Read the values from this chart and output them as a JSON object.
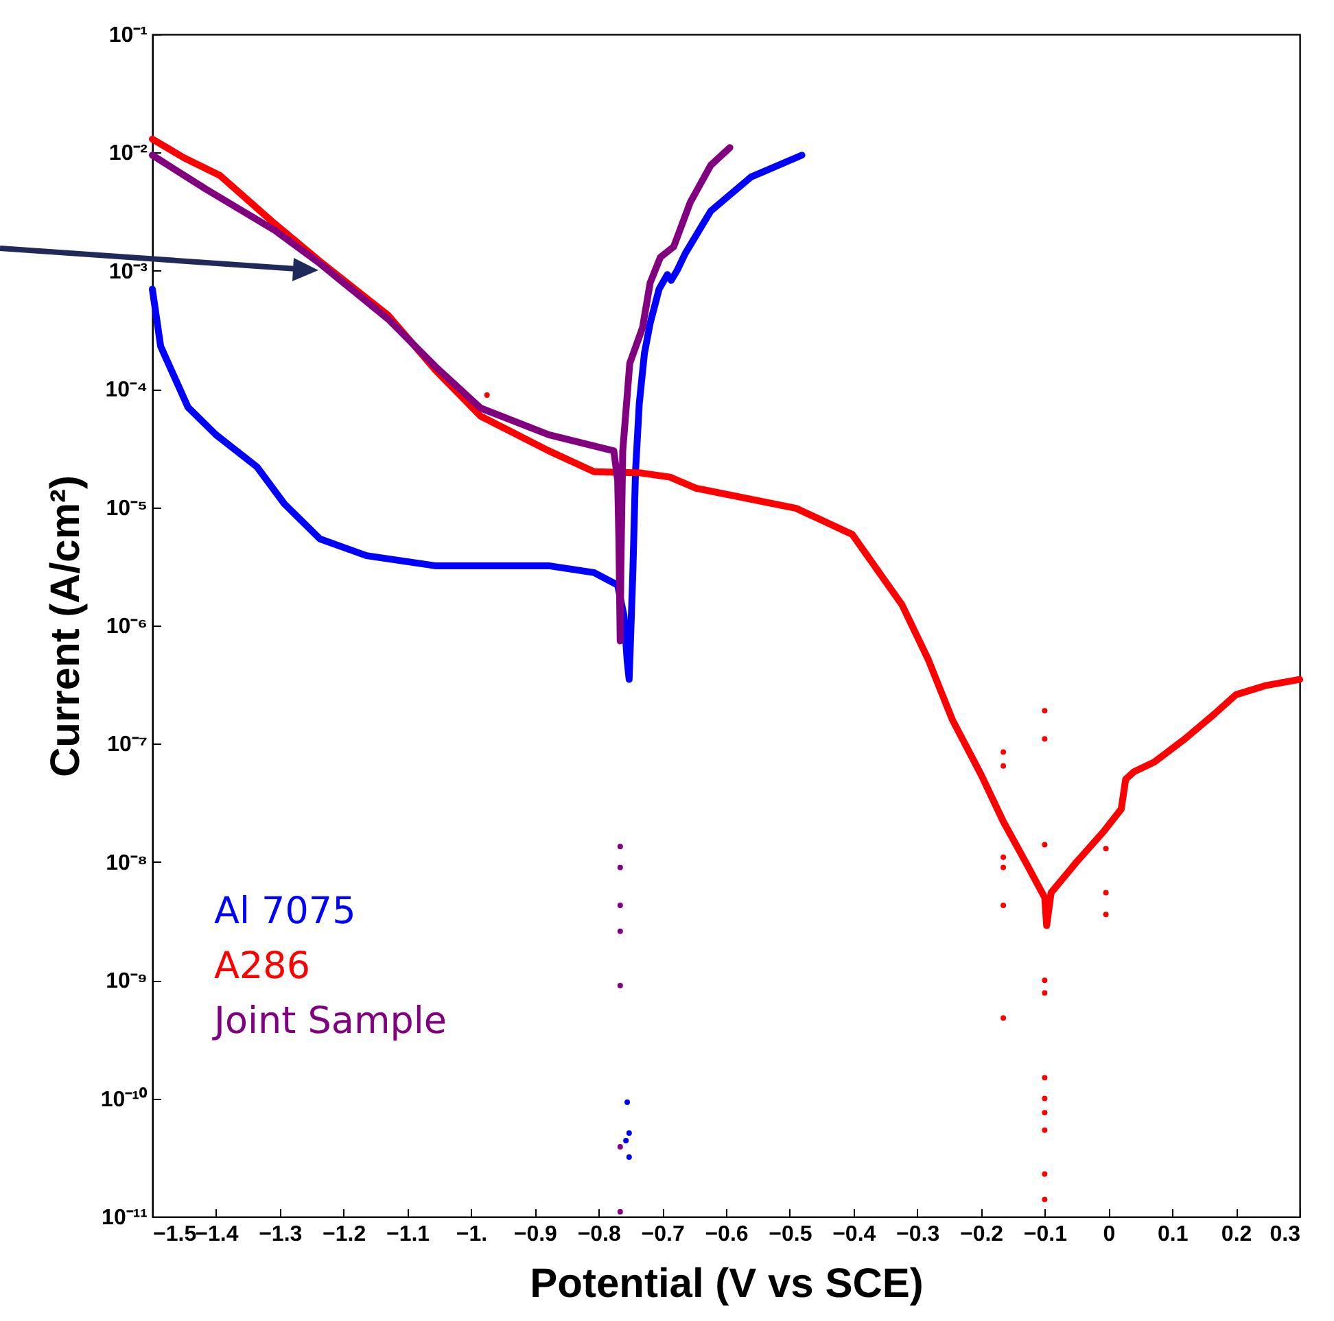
{
  "chart_data": {
    "type": "line",
    "xlabel": "Potential (V vs SCE)",
    "ylabel": "Current (A/cm²)",
    "log": "y",
    "grid": false,
    "legend": "bottom left",
    "line_style": "solid",
    "marker": "none",
    "xlim": [
      -1.5,
      0.3
    ],
    "xticks": [
      {
        "value": -1.5,
        "label": "−1.5"
      },
      {
        "value": -1.4,
        "label": "−1.4"
      },
      {
        "value": -1.3,
        "label": "−1.3"
      },
      {
        "value": -1.2,
        "label": "−1.2"
      },
      {
        "value": -1.1,
        "label": "−1.1"
      },
      {
        "value": -1.0,
        "label": "−1."
      },
      {
        "value": -0.9,
        "label": "−0.9"
      },
      {
        "value": -0.8,
        "label": "−0.8"
      },
      {
        "value": -0.7,
        "label": "−0.7"
      },
      {
        "value": -0.6,
        "label": "−0.6"
      },
      {
        "value": -0.5,
        "label": "−0.5"
      },
      {
        "value": -0.4,
        "label": "−0.4"
      },
      {
        "value": -0.3,
        "label": "−0.3"
      },
      {
        "value": -0.2,
        "label": "−0.2"
      },
      {
        "value": -0.1,
        "label": "−0.1"
      },
      0,
      0.1,
      0.2,
      0.3
    ],
    "ylim": [
      1e-11,
      0.1
    ],
    "yticks": [
      {
        "value": 1e-11,
        "label": "10⁻¹¹"
      },
      {
        "value": 1e-10,
        "label": "10⁻¹⁰"
      },
      {
        "value": 1e-09,
        "label": "10⁻⁹"
      },
      {
        "value": 1e-08,
        "label": "10⁻⁸"
      },
      {
        "value": 1e-07,
        "label": "10⁻⁷"
      },
      {
        "value": 1e-06,
        "label": "10⁻⁶"
      },
      {
        "value": 1e-05,
        "label": "10⁻⁵"
      },
      {
        "value": 0.0001,
        "label": "10⁻⁴"
      },
      {
        "value": 0.001,
        "label": "10⁻³"
      },
      {
        "value": 0.01,
        "label": "10⁻²"
      },
      {
        "value": 0.1,
        "label": "10⁻¹"
      }
    ],
    "series": [
      {
        "name": "Al 7075",
        "color": "#0000ff",
        "x": [
          -1.5,
          -1.487,
          -1.444,
          -1.4,
          -1.336,
          -1.293,
          -1.237,
          -1.164,
          -1.056,
          -0.878,
          -0.807,
          -0.77,
          -0.76,
          -0.755,
          -0.752,
          -0.749,
          -0.746,
          -0.742,
          -0.736,
          -0.728,
          -0.719,
          -0.705,
          -0.692,
          -0.686,
          -0.677,
          -0.664,
          -0.624,
          -0.561,
          -0.481
        ],
        "values": [
          0.0007,
          0.00023,
          7e-05,
          4.1e-05,
          2.2e-05,
          1.07e-05,
          5.4e-06,
          3.9e-06,
          3.2e-06,
          3.2e-06,
          2.8e-06,
          2.2e-06,
          1.2e-06,
          5e-07,
          3.5e-07,
          1e-06,
          3e-06,
          2e-05,
          7.6e-05,
          0.0002,
          0.00036,
          0.0007,
          0.00093,
          0.00083,
          0.001,
          0.0014,
          0.0032,
          0.0062,
          0.0095
        ]
      },
      {
        "name": "A286",
        "color": "#ff0000",
        "x": [
          -1.5,
          -1.45,
          -1.394,
          -1.308,
          -1.237,
          -1.13,
          -1.056,
          -0.985,
          -0.878,
          -0.807,
          -0.733,
          -0.688,
          -0.647,
          -0.49,
          -0.402,
          -0.324,
          -0.283,
          -0.245,
          -0.2,
          -0.165,
          -0.13,
          -0.1,
          -0.097,
          -0.09,
          -0.05,
          -0.008,
          0.02,
          0.027,
          0.04,
          0.072,
          0.12,
          0.167,
          0.2,
          0.246,
          0.3
        ],
        "values": [
          0.013,
          0.009,
          0.0064,
          0.0025,
          0.0012,
          0.00042,
          0.000145,
          5.9e-05,
          3e-05,
          2e-05,
          1.95e-05,
          1.8e-05,
          1.45e-05,
          9.8e-06,
          5.9e-06,
          1.5e-06,
          5.2e-07,
          1.6e-07,
          5.5e-08,
          2.2e-08,
          1e-08,
          5e-09,
          2.9e-09,
          5.5e-09,
          1e-08,
          1.8e-08,
          2.8e-08,
          5e-08,
          5.8e-08,
          7e-08,
          1.1e-07,
          1.8e-07,
          2.6e-07,
          3.1e-07,
          3.5e-07
        ]
      },
      {
        "name": "Joint Sample",
        "color": "#800080",
        "x": [
          -1.5,
          -1.416,
          -1.308,
          -1.237,
          -1.13,
          -1.056,
          -0.985,
          -0.878,
          -0.776,
          -0.77,
          -0.768,
          -0.766,
          -0.765,
          -0.762,
          -0.751,
          -0.731,
          -0.719,
          -0.703,
          -0.682,
          -0.656,
          -0.624,
          -0.594
        ],
        "values": [
          0.0095,
          0.0049,
          0.0022,
          0.00115,
          0.00039,
          0.000155,
          6.9e-05,
          4.1e-05,
          3e-05,
          1.7e-05,
          5e-06,
          7.4e-07,
          3e-06,
          3e-05,
          0.000165,
          0.00033,
          0.00079,
          0.0013,
          0.0016,
          0.0038,
          0.0078,
          0.011
        ]
      },
      {
        "type": "scatter",
        "marker": "circle",
        "color": "#0000ff",
        "x": [
          -0.755,
          -0.752,
          -0.757,
          -0.752
        ],
        "values": [
          9.3e-11,
          5.1e-11,
          4.4e-11,
          3.2e-11
        ]
      },
      {
        "type": "scatter",
        "marker": "circle",
        "color": "#ff0000",
        "x": [
          -0.975,
          -0.165,
          -0.165,
          -0.165,
          -0.165,
          -0.165,
          -0.165,
          -0.1,
          -0.1,
          -0.1,
          -0.1,
          -0.1,
          -0.1,
          -0.1,
          -0.1,
          -0.1,
          -0.1,
          -0.1,
          -0.004,
          -0.004,
          -0.004
        ],
        "values": [
          8.9e-05,
          8.5e-08,
          6.5e-08,
          1.1e-08,
          9e-09,
          4.3e-09,
          4.8e-10,
          1.9e-07,
          1.1e-07,
          1.4e-08,
          1e-09,
          7.8e-10,
          1.5e-10,
          1e-10,
          7.6e-11,
          5.4e-11,
          2.3e-11,
          1.4e-11,
          1.3e-08,
          5.5e-09,
          3.6e-09
        ]
      },
      {
        "type": "scatter",
        "marker": "circle",
        "color": "#800080",
        "x": [
          -0.766,
          -0.766,
          -0.766,
          -0.766,
          -0.766,
          -0.766,
          -0.766
        ],
        "values": [
          1.35e-08,
          9e-09,
          4.3e-09,
          2.6e-09,
          9e-10,
          3.9e-11,
          1.1e-11
        ]
      }
    ]
  }
}
